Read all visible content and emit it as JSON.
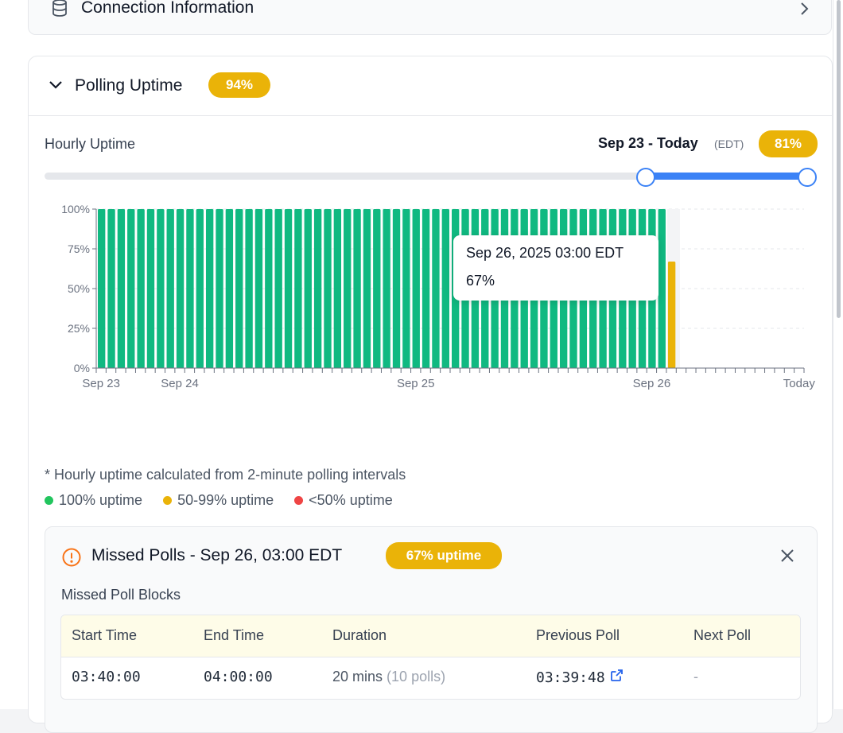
{
  "connection": {
    "title": "Connection Information",
    "icon": "database-icon"
  },
  "polling": {
    "title": "Polling Uptime",
    "badge": "94%",
    "hourly_label": "Hourly Uptime",
    "range_text": "Sep 23 - Today",
    "range_tz": "(EDT)",
    "range_badge": "81%",
    "slider": {
      "start_fraction": 0.805,
      "end_fraction": 1.0
    },
    "tooltip": {
      "title": "Sep 26, 2025 03:00 EDT",
      "value": "67%"
    },
    "footnote": "* Hourly uptime calculated from 2-minute polling intervals",
    "legend": [
      {
        "label": "100% uptime",
        "color": "#22c55e"
      },
      {
        "label": "50-99% uptime",
        "color": "#eab308"
      },
      {
        "label": "<50% uptime",
        "color": "#ef4444"
      }
    ]
  },
  "chart_data": {
    "type": "bar",
    "y_ticks": [
      "100%",
      "75%",
      "50%",
      "25%",
      "0%"
    ],
    "ylim": [
      0,
      100
    ],
    "x_labels": [
      {
        "label": "Sep 23",
        "slot": 0
      },
      {
        "label": "Sep 24",
        "slot": 8
      },
      {
        "label": "Sep 25",
        "slot": 32
      },
      {
        "label": "Sep 26",
        "slot": 56
      },
      {
        "label": "Today",
        "slot": 71
      }
    ],
    "total_slots": 72,
    "values": [
      100,
      100,
      100,
      100,
      100,
      100,
      100,
      100,
      100,
      100,
      100,
      100,
      100,
      100,
      100,
      100,
      100,
      100,
      100,
      100,
      100,
      100,
      100,
      100,
      100,
      100,
      100,
      100,
      100,
      100,
      100,
      100,
      100,
      100,
      100,
      100,
      100,
      100,
      100,
      100,
      100,
      100,
      100,
      100,
      100,
      100,
      100,
      100,
      100,
      100,
      100,
      100,
      100,
      100,
      100,
      100,
      100,
      100,
      67
    ],
    "colors": {
      "full": "#10b981",
      "partial": "#eab308",
      "low": "#ef4444"
    },
    "highlight_index": 58
  },
  "missed": {
    "title": "Missed Polls - Sep 26, 03:00 EDT",
    "badge": "67% uptime",
    "subtitle": "Missed Poll Blocks",
    "columns": [
      "Start Time",
      "End Time",
      "Duration",
      "Previous Poll",
      "Next Poll"
    ],
    "row": {
      "start": "03:40:00",
      "end": "04:00:00",
      "duration": "20 mins",
      "polls": "(10 polls)",
      "previous": "03:39:48",
      "next": "-"
    }
  }
}
